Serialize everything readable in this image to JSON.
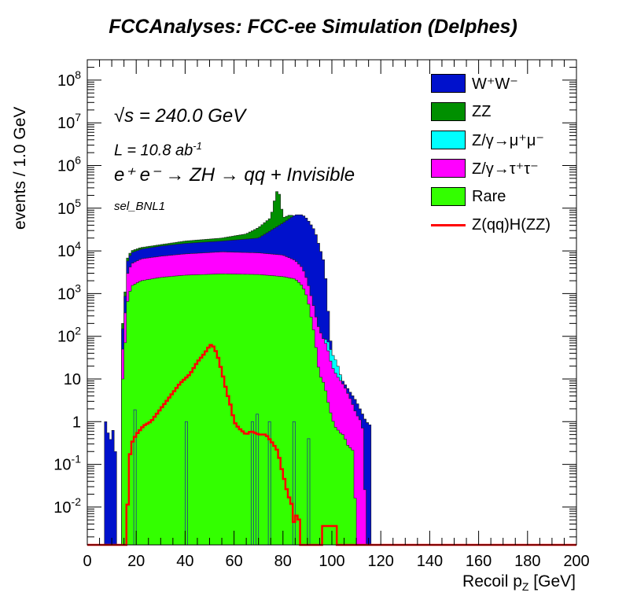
{
  "chart_data": {
    "type": "histogram",
    "title": "FCCAnalyses: FCC-ee Simulation (Delphes)",
    "xlabel_main": "Recoil p",
    "xlabel_sub": "Z",
    "xlabel_unit": " [GeV]",
    "ylabel": "events / 1.0 GeV",
    "xlim": [
      0,
      200
    ],
    "ylim": [
      0.0013,
      300000000
    ],
    "log_y": true,
    "x_ticks": [
      "0",
      "20",
      "40",
      "60",
      "80",
      "100",
      "120",
      "140",
      "160",
      "180",
      "200"
    ],
    "y_ticks": [
      {
        "base": "10",
        "exp": "-2",
        "v": 0.01
      },
      {
        "base": "10",
        "exp": "-1",
        "v": 0.1
      },
      {
        "base": "1",
        "exp": "",
        "v": 1
      },
      {
        "base": "10",
        "exp": "",
        "v": 10
      },
      {
        "base": "10",
        "exp": "2",
        "v": 100
      },
      {
        "base": "10",
        "exp": "3",
        "v": 1000
      },
      {
        "base": "10",
        "exp": "4",
        "v": 10000
      },
      {
        "base": "10",
        "exp": "5",
        "v": 100000
      },
      {
        "base": "10",
        "exp": "6",
        "v": 1000000
      },
      {
        "base": "10",
        "exp": "7",
        "v": 10000000
      },
      {
        "base": "10",
        "exp": "8",
        "v": 100000000
      }
    ],
    "annotations": {
      "sqrt_s": "s = 240.0 GeV",
      "lumi": "L = 10.8 ab",
      "lumi_exp": "-1",
      "process": "e⁺ e⁻ → ZH → qq + Invisible",
      "selection": "sel_BNL1"
    },
    "stack": [
      {
        "name": "Rare",
        "label": "Rare",
        "color": "#33ff00",
        "points": [
          [
            14,
            0
          ],
          [
            15,
            10
          ],
          [
            16,
            500
          ],
          [
            18,
            1500
          ],
          [
            22,
            2000
          ],
          [
            30,
            2400
          ],
          [
            40,
            2700
          ],
          [
            55,
            2900
          ],
          [
            70,
            2800
          ],
          [
            80,
            2500
          ],
          [
            85,
            2200
          ],
          [
            88,
            1500
          ],
          [
            90,
            800
          ],
          [
            93,
            100
          ],
          [
            94,
            30
          ],
          [
            95,
            12
          ],
          [
            96,
            10
          ],
          [
            97,
            7
          ],
          [
            98,
            4
          ],
          [
            99,
            2
          ],
          [
            100,
            1.3
          ],
          [
            101,
            0.8
          ],
          [
            104,
            0.5
          ],
          [
            105,
            0.5
          ],
          [
            106,
            0.3
          ],
          [
            109,
            0.2
          ],
          [
            110,
            0.0013
          ]
        ]
      },
      {
        "name": "Z_tautau",
        "label": "Z/γ→τ⁺τ⁻",
        "color": "#ff00ff",
        "points": [
          [
            14,
            0
          ],
          [
            15,
            50
          ],
          [
            16,
            2500
          ],
          [
            18,
            5000
          ],
          [
            22,
            6500
          ],
          [
            30,
            7500
          ],
          [
            40,
            8500
          ],
          [
            55,
            9500
          ],
          [
            70,
            9000
          ],
          [
            80,
            8000
          ],
          [
            85,
            6000
          ],
          [
            88,
            4000
          ],
          [
            90,
            2000
          ],
          [
            93,
            400
          ],
          [
            94,
            200
          ],
          [
            96,
            100
          ],
          [
            98,
            60
          ],
          [
            100,
            20
          ],
          [
            102,
            12
          ],
          [
            105,
            7
          ],
          [
            107,
            4
          ],
          [
            108,
            3
          ],
          [
            110,
            1.5
          ],
          [
            112,
            1
          ],
          [
            113,
            0.5
          ],
          [
            114,
            0.0013
          ]
        ]
      },
      {
        "name": "Z_mumu",
        "label": "Z/γ→μ⁺μ⁻",
        "color": "#00ffff",
        "points": [
          [
            94,
            0
          ],
          [
            95,
            20
          ],
          [
            96,
            70
          ],
          [
            98,
            90
          ],
          [
            100,
            40
          ],
          [
            102,
            25
          ],
          [
            104,
            10
          ],
          [
            106,
            3
          ],
          [
            107,
            0
          ]
        ]
      },
      {
        "name": "WW",
        "label": "W⁺W⁻",
        "color": "#0011cc",
        "points": [
          [
            7,
            0
          ],
          [
            8,
            1
          ],
          [
            9,
            0.3
          ],
          [
            11,
            0.8
          ],
          [
            12,
            0.05
          ],
          [
            13,
            0
          ],
          [
            14,
            0
          ],
          [
            15,
            150
          ],
          [
            16,
            5000
          ],
          [
            18,
            9000
          ],
          [
            22,
            11000
          ],
          [
            30,
            13000
          ],
          [
            40,
            15000
          ],
          [
            55,
            17000
          ],
          [
            70,
            20000
          ],
          [
            75,
            30000
          ],
          [
            80,
            45000
          ],
          [
            85,
            70000
          ],
          [
            88,
            70000
          ],
          [
            90,
            55000
          ],
          [
            93,
            30000
          ],
          [
            95,
            12000
          ],
          [
            97,
            5000
          ],
          [
            98,
            1000
          ],
          [
            99,
            150
          ],
          [
            100,
            40
          ],
          [
            102,
            15
          ],
          [
            105,
            8
          ],
          [
            110,
            3
          ],
          [
            114,
            1
          ],
          [
            116,
            0.8
          ],
          [
            117,
            0
          ]
        ]
      },
      {
        "name": "ZZ",
        "label": "ZZ",
        "color": "#008f00",
        "points": [
          [
            14,
            0
          ],
          [
            15,
            200
          ],
          [
            16,
            6000
          ],
          [
            18,
            10000
          ],
          [
            22,
            12000
          ],
          [
            30,
            14000
          ],
          [
            40,
            17000
          ],
          [
            55,
            20000
          ],
          [
            65,
            25000
          ],
          [
            70,
            35000
          ],
          [
            75,
            60000
          ],
          [
            77,
            200000
          ],
          [
            78,
            300000
          ],
          [
            79,
            150000
          ],
          [
            80,
            60000
          ],
          [
            83,
            70000
          ],
          [
            86,
            60000
          ],
          [
            88,
            70000
          ],
          [
            90,
            55000
          ],
          [
            93,
            30000
          ],
          [
            95,
            12000
          ],
          [
            97,
            5000
          ],
          [
            98,
            1000
          ],
          [
            99,
            150
          ],
          [
            100,
            40
          ],
          [
            102,
            15
          ],
          [
            105,
            8
          ],
          [
            110,
            3
          ],
          [
            114,
            1
          ],
          [
            116,
            0.8
          ],
          [
            117,
            0
          ]
        ]
      }
    ],
    "signal": {
      "name": "ZqqHZZ",
      "label": "Z(qq)H(ZZ)",
      "color": "#ff0000",
      "points": [
        [
          14,
          0
        ],
        [
          16,
          0.0013
        ],
        [
          17,
          0.1
        ],
        [
          18,
          0.3
        ],
        [
          20,
          0.5
        ],
        [
          23,
          0.8
        ],
        [
          26,
          1
        ],
        [
          30,
          2
        ],
        [
          34,
          4
        ],
        [
          38,
          8
        ],
        [
          42,
          13
        ],
        [
          45,
          25
        ],
        [
          48,
          40
        ],
        [
          50,
          60
        ],
        [
          51,
          65
        ],
        [
          53,
          40
        ],
        [
          55,
          15
        ],
        [
          57,
          5
        ],
        [
          59,
          2
        ],
        [
          60,
          1
        ],
        [
          62,
          0.7
        ],
        [
          65,
          0.5
        ],
        [
          67,
          0.6
        ],
        [
          70,
          0.5
        ],
        [
          73,
          0.5
        ],
        [
          76,
          0.3
        ],
        [
          78,
          0.2
        ],
        [
          79,
          0.1
        ],
        [
          80,
          0.06
        ],
        [
          82,
          0.02
        ],
        [
          84,
          0.01
        ],
        [
          85,
          0.002
        ],
        [
          86,
          0.02
        ],
        [
          87,
          0.0013
        ],
        [
          96,
          0.0013
        ],
        [
          97,
          0.01
        ],
        [
          98,
          0.0013
        ],
        [
          99,
          0.01
        ],
        [
          100,
          0.0013
        ],
        [
          101,
          0.01
        ],
        [
          102,
          0.0013
        ]
      ]
    },
    "spikes": [
      {
        "x": 19.5,
        "v": 1.9,
        "color": "#33ff00"
      },
      {
        "x": 40.5,
        "v": 1.0,
        "color": "#33ff00"
      },
      {
        "x": 67.5,
        "v": 1.0,
        "color": "#33ff00"
      },
      {
        "x": 69.5,
        "v": 1.5,
        "color": "#33ff00"
      },
      {
        "x": 74.5,
        "v": 1.0,
        "color": "#33ff00"
      },
      {
        "x": 84.5,
        "v": 1.0,
        "color": "#33ff00"
      },
      {
        "x": 90.5,
        "v": 0.4,
        "color": "#33ff00"
      }
    ],
    "legend": [
      {
        "label": "W⁺W⁻",
        "color": "#0011cc",
        "kind": "box"
      },
      {
        "label": "ZZ",
        "color": "#008f00",
        "kind": "box"
      },
      {
        "label": "Z/γ→μ⁺μ⁻",
        "color": "#00ffff",
        "kind": "box"
      },
      {
        "label": "Z/γ→τ⁺τ⁻",
        "color": "#ff00ff",
        "kind": "box"
      },
      {
        "label": "Rare",
        "color": "#33ff00",
        "kind": "box"
      },
      {
        "label": "Z(qq)H(ZZ)",
        "color": "#ff0000",
        "kind": "line"
      }
    ]
  }
}
